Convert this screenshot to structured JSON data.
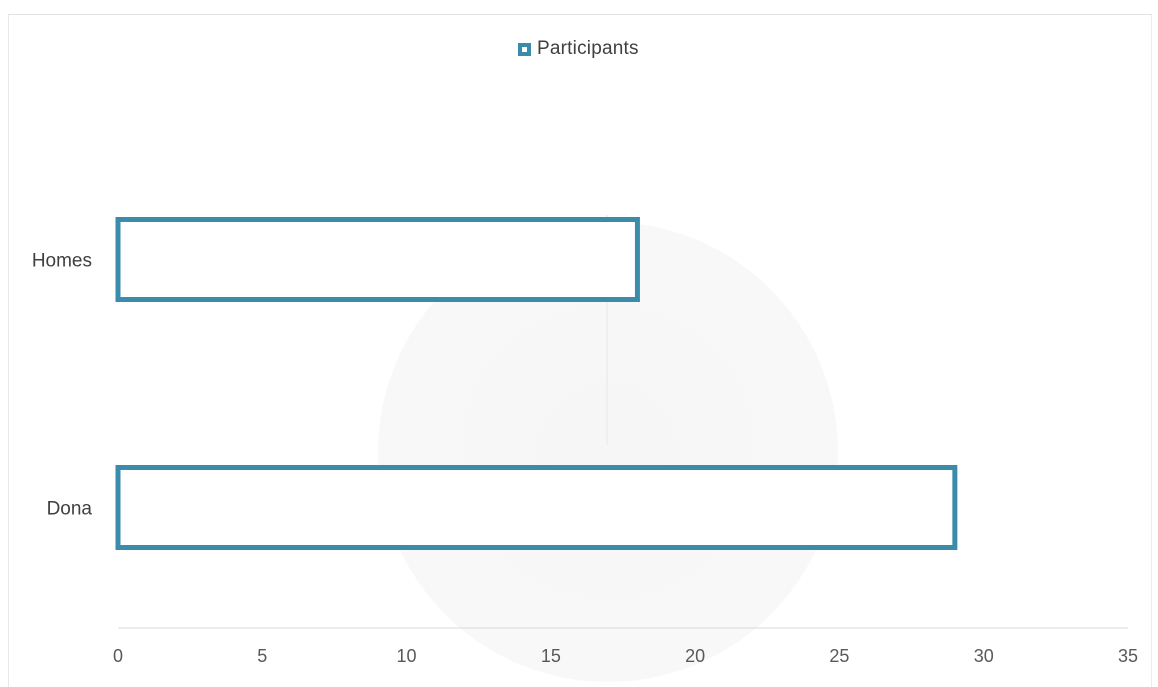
{
  "chart_data": {
    "type": "bar",
    "orientation": "horizontal",
    "categories": [
      "Homes",
      "Dona"
    ],
    "series": [
      {
        "name": "Participants",
        "values": [
          18,
          29
        ]
      }
    ],
    "xlim": [
      0,
      35
    ],
    "x_ticks": [
      "0",
      "5",
      "10",
      "15",
      "20",
      "25",
      "30",
      "35"
    ],
    "legend": {
      "position": "top",
      "labels": [
        "Participants"
      ]
    },
    "grid": false,
    "colors": {
      "bar_outline": "#3b8bab",
      "bar_fill": "#ffffff",
      "text": "#404040",
      "axis": "#d9d9d9"
    }
  }
}
